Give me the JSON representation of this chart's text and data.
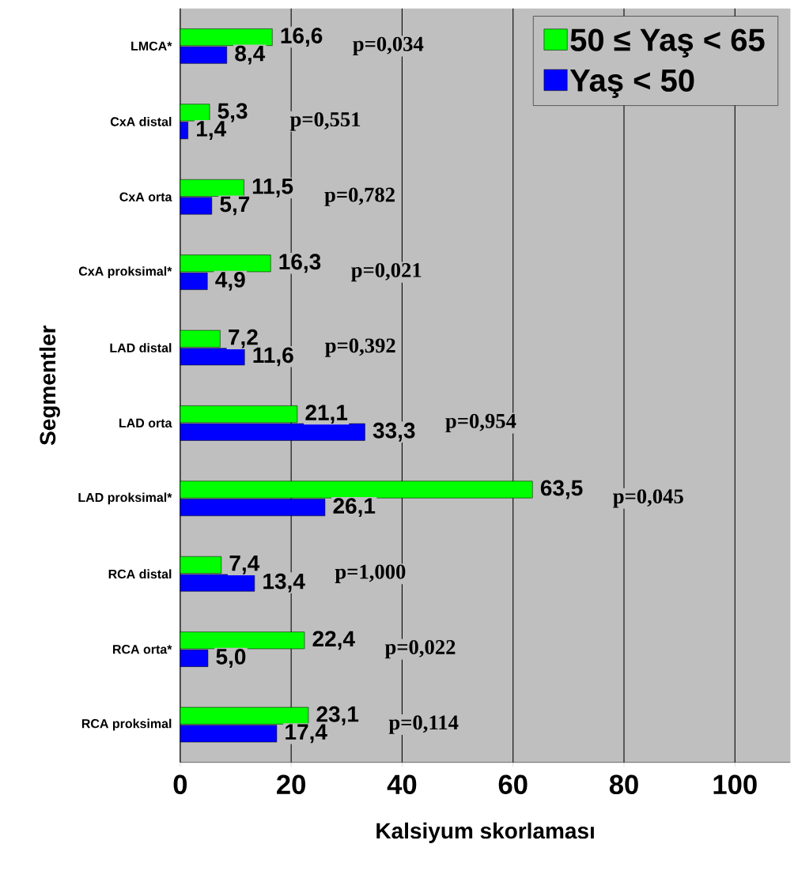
{
  "chart_data": {
    "type": "bar",
    "orientation": "horizontal",
    "xlabel": "Kalsiyum skorlaması",
    "ylabel": "Segmentler",
    "categories": [
      "LMCA*",
      "CxA distal",
      "CxA orta",
      "CxA proksimal*",
      "LAD distal",
      "LAD orta",
      "LAD proksimal*",
      "RCA distal",
      "RCA orta*",
      "RCA proksimal"
    ],
    "series": [
      {
        "name": "50 ≤  Yaş < 65",
        "color": "#00ff00",
        "values": [
          16.6,
          5.3,
          11.5,
          16.3,
          7.2,
          21.1,
          63.5,
          7.4,
          22.4,
          23.1
        ],
        "value_labels": [
          "16,6",
          "5,3",
          "11,5",
          "16,3",
          "7,2",
          "21,1",
          "63,5",
          "7,4",
          "22,4",
          "23,1"
        ]
      },
      {
        "name": "Yaş < 50",
        "color": "#0000ff",
        "values": [
          8.4,
          1.4,
          5.7,
          4.9,
          11.6,
          33.3,
          26.1,
          13.4,
          5.0,
          17.4
        ],
        "value_labels": [
          "8,4",
          "1,4",
          "5,7",
          "4,9",
          "11,6",
          "33,3",
          "26,1",
          "13,4",
          "5,0",
          "17,4"
        ]
      }
    ],
    "xlim": [
      0,
      110
    ],
    "xticks": [
      0,
      20,
      40,
      60,
      80,
      100
    ],
    "grid": "x",
    "legend": "top right",
    "annotations": [
      "p=0,034",
      "p=0,551",
      "p=0,782",
      "p=0,021",
      "p=0,392",
      "p=0,954",
      "p=0,045",
      "p=1,000",
      "p=0,022",
      "p=0,114"
    ]
  }
}
